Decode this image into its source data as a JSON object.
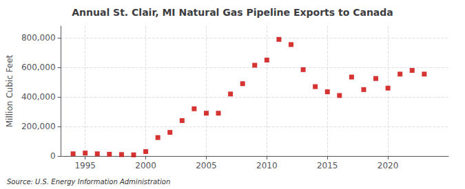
{
  "chart_data": {
    "type": "scatter",
    "title": "Annual St. Clair, MI Natural Gas Pipeline Exports to Canada",
    "ylabel": "Million Cubic Feet",
    "source": "Source: U.S. Energy Information Administration",
    "x": [
      1994,
      1995,
      1996,
      1997,
      1998,
      1999,
      2000,
      2001,
      2002,
      2003,
      2004,
      2005,
      2006,
      2007,
      2008,
      2009,
      2010,
      2011,
      2012,
      2013,
      2014,
      2015,
      2016,
      2017,
      2018,
      2019,
      2020,
      2021,
      2022,
      2023
    ],
    "values": [
      15000,
      20000,
      15000,
      12000,
      10000,
      8000,
      30000,
      125000,
      160000,
      240000,
      320000,
      290000,
      290000,
      420000,
      490000,
      615000,
      650000,
      790000,
      755000,
      585000,
      470000,
      435000,
      410000,
      535000,
      450000,
      525000,
      460000,
      555000,
      580000,
      555000
    ],
    "color": "#cc0000",
    "marker": "square",
    "xlim": [
      1993,
      2025
    ],
    "xticks": [
      1995,
      2000,
      2005,
      2010,
      2015,
      2020
    ],
    "ylim": [
      0,
      880000
    ],
    "yticks": [
      0,
      {
        "value": 200000,
        "label": "200,000"
      },
      {
        "value": 400000,
        "label": "400,000"
      },
      {
        "value": 600000,
        "label": "600,000"
      },
      {
        "value": 800000,
        "label": "800,000"
      }
    ],
    "grid": true
  }
}
